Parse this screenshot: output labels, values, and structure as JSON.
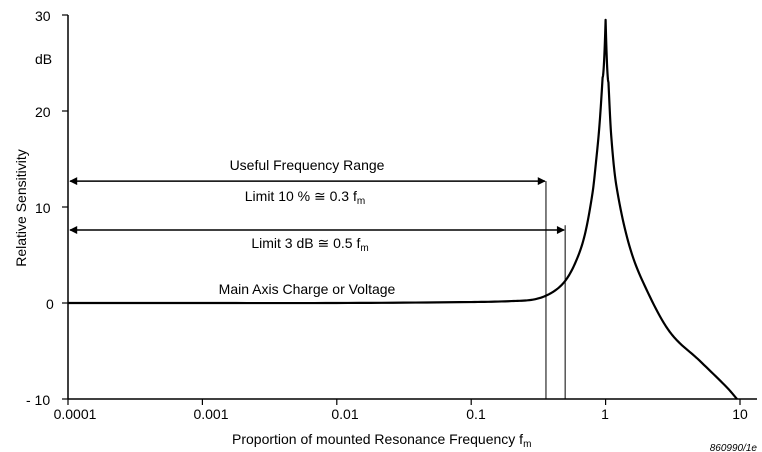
{
  "chart_data": {
    "type": "line",
    "xscale": "log",
    "xlim": [
      0.0001,
      10
    ],
    "ylim": [
      -10,
      30
    ],
    "xticks": [
      "0.0001",
      "0.001",
      "0.01",
      "0.1",
      "1",
      "10"
    ],
    "yticks": [
      "- 10",
      "0",
      "10",
      "20",
      "30"
    ],
    "yunit": "dB",
    "xlabel": "Proportion of mounted Resonance Frequency f",
    "xlabel_sub": "m",
    "ylabel": "Relative Sensitivity",
    "figure_id": "860990/1e",
    "grid": false,
    "series": [
      {
        "x": [
          0.0001,
          0.001,
          0.01,
          0.1,
          0.2,
          0.3,
          0.4,
          0.5,
          0.6,
          0.7,
          0.8,
          0.85,
          0.9,
          0.95,
          1.0,
          1.05,
          1.1,
          1.2,
          1.5,
          2,
          3,
          5,
          8,
          9.5
        ],
        "y": [
          0,
          0,
          0,
          0.1,
          0.2,
          0.4,
          1.1,
          2.3,
          4.3,
          7.1,
          11.5,
          14.8,
          18.5,
          23.5,
          29.5,
          23.0,
          17.5,
          12.3,
          6.0,
          1.5,
          -3.0,
          -6.0,
          -8.8,
          -10.0
        ]
      }
    ],
    "limit_lines": [
      {
        "x": 0.36
      },
      {
        "x": 0.5
      }
    ],
    "annotations": {
      "useful_range": "Useful Frequency Range",
      "limit_10": "Limit 10 % ≅ 0.3 f",
      "limit_3db": "Limit 3 dB ≅ 0.5 f",
      "limit_sub": "m",
      "main_axis": "Main Axis Charge or Voltage"
    }
  }
}
